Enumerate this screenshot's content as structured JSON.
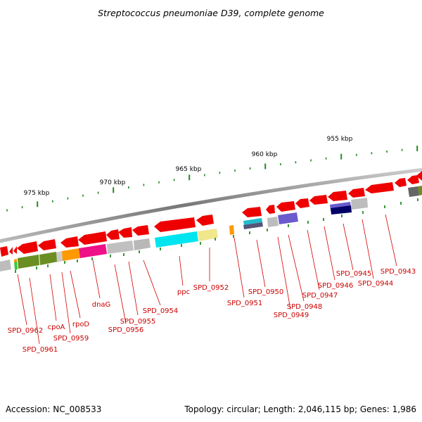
{
  "title": "Streptococcus pneumoniae D39, complete genome",
  "footer": {
    "accession": "Accession: NC_008533",
    "summary": "Topology: circular; Length: 2,046,115 bp; Genes: 1,986"
  },
  "ruler": {
    "labels": [
      "975 kbp",
      "970 kbp",
      "965 kbp",
      "960 kbp",
      "955 kbp"
    ]
  },
  "colors": {
    "gene_red": "#ee0000",
    "backbone": "#888888",
    "tick_green": "#228B22",
    "label_red": "#cc0000"
  },
  "gene_labels": [
    "SPD_0962",
    "SPD_0961",
    "cpoA",
    "SPD_0959",
    "rpoD",
    "dnaG",
    "SPD_0956",
    "SPD_0955",
    "SPD_0954",
    "ppc",
    "SPD_0952",
    "SPD_0951",
    "SPD_0950",
    "SPD_0949",
    "SPD_0948",
    "SPD_0947",
    "SPD_0946",
    "SPD_0945",
    "SPD_0944",
    "SPD_0943"
  ]
}
